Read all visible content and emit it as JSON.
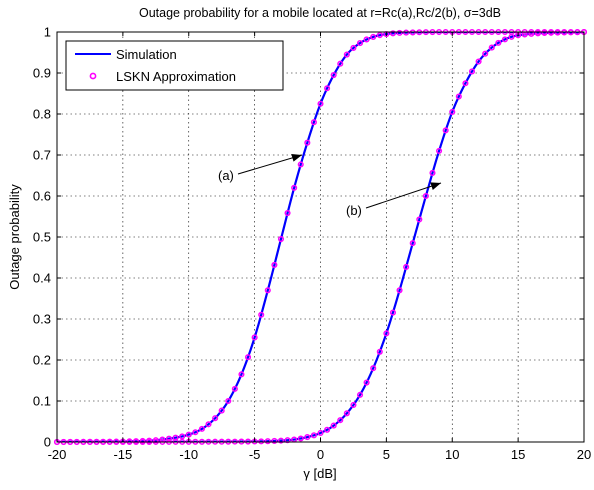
{
  "chart_data": {
    "type": "line",
    "title": "Outage probability for a mobile located at r=Rc(a),Rc/2(b), σ=3dB",
    "xlabel": "γ [dB]",
    "ylabel": "Outage probability",
    "xlim": [
      -20,
      20
    ],
    "ylim": [
      0,
      1
    ],
    "xticks": [
      -20,
      -15,
      -10,
      -5,
      0,
      5,
      10,
      15,
      20
    ],
    "xtick_labels": [
      "-20",
      "-15",
      "-10",
      "-5",
      "0",
      "5",
      "10",
      "15",
      "20"
    ],
    "yticks": [
      0,
      0.1,
      0.2,
      0.3,
      0.4,
      0.5,
      0.6,
      0.7,
      0.8,
      0.9,
      1
    ],
    "ytick_labels": [
      "0",
      "0.1",
      "0.2",
      "0.3",
      "0.4",
      "0.5",
      "0.6",
      "0.7",
      "0.8",
      "0.9",
      "1"
    ],
    "grid": true,
    "legend_position": "top-left",
    "legend": [
      {
        "label": "Simulation",
        "style": "line",
        "color": "#0000ff"
      },
      {
        "label": "LSKN Approximation",
        "style": "marker",
        "color": "#ff00ff"
      }
    ],
    "annotations": [
      {
        "label": "(a)",
        "arrow_to": [
          -1.2,
          0.7
        ]
      },
      {
        "label": "(b)",
        "arrow_to": [
          8.7,
          0.625
        ]
      }
    ],
    "series": [
      {
        "name": "Simulation",
        "curve": "(a)",
        "color": "#0000ff",
        "x": [
          -20,
          -14,
          -12,
          -10,
          -9,
          -8,
          -7,
          -6,
          -5,
          -4,
          -3,
          -2,
          -1,
          0,
          1,
          2,
          3,
          4,
          5,
          7,
          10,
          20
        ],
        "y": [
          0.0,
          0.002,
          0.006,
          0.018,
          0.032,
          0.058,
          0.1,
          0.165,
          0.255,
          0.37,
          0.495,
          0.62,
          0.73,
          0.825,
          0.895,
          0.945,
          0.973,
          0.988,
          0.995,
          0.999,
          1.0,
          1.0
        ]
      },
      {
        "name": "Simulation",
        "curve": "(b)",
        "color": "#0000ff",
        "x": [
          -20,
          -6,
          -4,
          -2,
          -1,
          0,
          1,
          2,
          3,
          4,
          5,
          6,
          7,
          8,
          9,
          10,
          11,
          12,
          13,
          14,
          15,
          20
        ],
        "y": [
          0.0,
          0.001,
          0.002,
          0.006,
          0.012,
          0.022,
          0.04,
          0.07,
          0.115,
          0.18,
          0.265,
          0.37,
          0.485,
          0.6,
          0.71,
          0.805,
          0.875,
          0.928,
          0.962,
          0.982,
          0.992,
          1.0
        ]
      },
      {
        "name": "LSKN Approximation",
        "curve": "(a)",
        "color": "#ff00ff",
        "x": [
          -20,
          -14,
          -12,
          -10,
          -9,
          -8,
          -7,
          -6,
          -5,
          -4,
          -3,
          -2,
          -1,
          0,
          1,
          2,
          3,
          4,
          5,
          7,
          10,
          20
        ],
        "y": [
          0.0,
          0.002,
          0.006,
          0.018,
          0.032,
          0.058,
          0.1,
          0.165,
          0.255,
          0.37,
          0.495,
          0.62,
          0.73,
          0.825,
          0.895,
          0.945,
          0.973,
          0.988,
          0.995,
          0.999,
          1.0,
          1.0
        ]
      },
      {
        "name": "LSKN Approximation",
        "curve": "(b)",
        "color": "#ff00ff",
        "x": [
          -20,
          -6,
          -4,
          -2,
          -1,
          0,
          1,
          2,
          3,
          4,
          5,
          6,
          7,
          8,
          9,
          10,
          11,
          12,
          13,
          14,
          15,
          20
        ],
        "y": [
          0.0,
          0.001,
          0.002,
          0.006,
          0.012,
          0.022,
          0.04,
          0.07,
          0.115,
          0.18,
          0.265,
          0.37,
          0.485,
          0.6,
          0.71,
          0.805,
          0.875,
          0.928,
          0.962,
          0.982,
          0.992,
          1.0
        ]
      }
    ]
  }
}
